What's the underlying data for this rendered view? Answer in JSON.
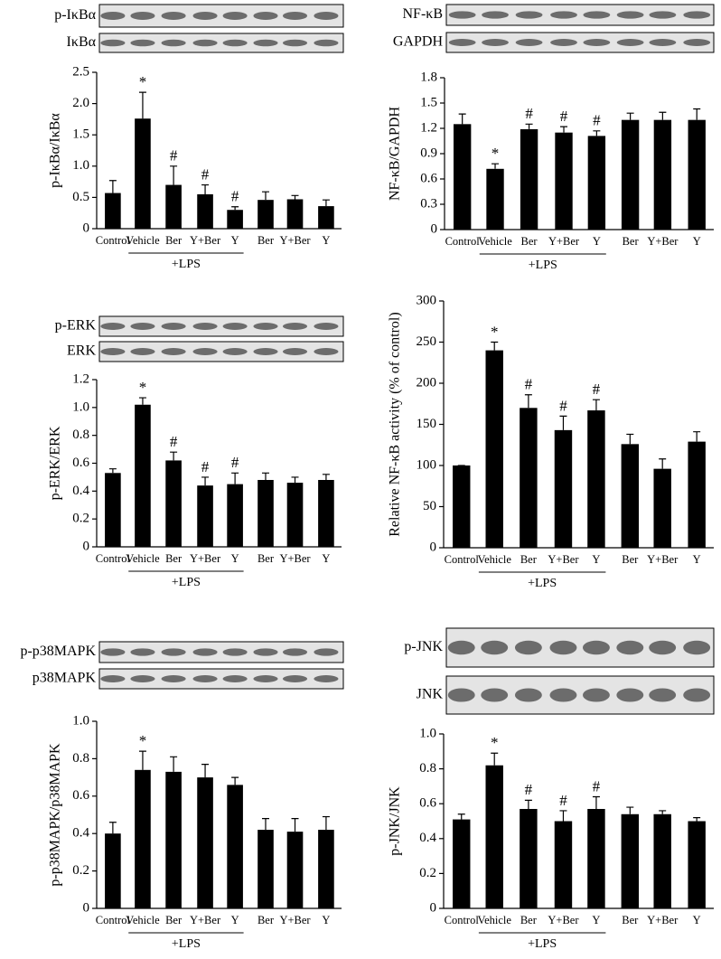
{
  "chart_data": [
    {
      "type": "bar",
      "ylabel": "p-IκBα/IκBα",
      "blots": [
        "p-IκBα",
        "IκBα"
      ],
      "categories": [
        "Control",
        "Vehicle",
        "Ber",
        "Y+Ber",
        "Y",
        "Ber",
        "Y+Ber",
        "Y"
      ],
      "values": [
        0.57,
        1.76,
        0.7,
        0.55,
        0.3,
        0.46,
        0.47,
        0.36
      ],
      "errors": [
        0.2,
        0.42,
        0.3,
        0.15,
        0.05,
        0.13,
        0.06,
        0.1
      ],
      "markers": [
        null,
        "*",
        "#",
        "#",
        "#",
        null,
        null,
        null
      ],
      "group_label": "+LPS",
      "color": "#000000",
      "ylim": [
        0,
        2.5
      ],
      "yticks": [
        0,
        0.5,
        {
          "value": 1,
          "label": "1.0"
        },
        1.5,
        {
          "value": 2,
          "label": "2.0"
        },
        2.5
      ]
    },
    {
      "type": "bar",
      "ylabel": "NF-κB/GAPDH",
      "blots": [
        "NF-κB",
        "GAPDH"
      ],
      "categories": [
        "Control",
        "Vehicle",
        "Ber",
        "Y+Ber",
        "Y",
        "Ber",
        "Y+Ber",
        "Y"
      ],
      "values": [
        1.25,
        0.72,
        1.19,
        1.15,
        1.11,
        1.3,
        1.3,
        1.3
      ],
      "errors": [
        0.12,
        0.06,
        0.06,
        0.07,
        0.06,
        0.08,
        0.09,
        0.13
      ],
      "markers": [
        null,
        "*",
        "#",
        "#",
        "#",
        null,
        null,
        null
      ],
      "group_label": "+LPS",
      "color": "#000000",
      "ylim": [
        0,
        1.8
      ],
      "yticks": [
        0,
        0.3,
        0.6,
        0.9,
        1.2,
        1.5,
        1.8
      ]
    },
    {
      "type": "bar",
      "ylabel": "p-ERK/ERK",
      "blots": [
        "p-ERK",
        "ERK"
      ],
      "categories": [
        "Control",
        "Vehicle",
        "Ber",
        "Y+Ber",
        "Y",
        "Ber",
        "Y+Ber",
        "Y"
      ],
      "values": [
        0.53,
        1.02,
        0.62,
        0.44,
        0.45,
        0.48,
        0.46,
        0.48
      ],
      "errors": [
        0.03,
        0.05,
        0.06,
        0.06,
        0.08,
        0.05,
        0.04,
        0.04
      ],
      "markers": [
        null,
        "*",
        "#",
        "#",
        "#",
        null,
        null,
        null
      ],
      "group_label": "+LPS",
      "color": "#000000",
      "ylim": [
        0,
        1.2
      ],
      "yticks": [
        0,
        0.2,
        0.4,
        0.6,
        0.8,
        {
          "value": 1,
          "label": "1.0"
        },
        1.2
      ]
    },
    {
      "type": "bar",
      "ylabel": "Relative NF-κB activity (% of control)",
      "categories": [
        "Control",
        "Vehicle",
        "Ber",
        "Y+Ber",
        "Y",
        "Ber",
        "Y+Ber",
        "Y"
      ],
      "values": [
        100,
        240,
        170,
        143,
        167,
        126,
        96,
        129
      ],
      "errors": [
        0,
        10,
        16,
        17,
        13,
        12,
        12,
        12
      ],
      "markers": [
        null,
        "*",
        "#",
        "#",
        "#",
        null,
        null,
        null
      ],
      "group_label": "+LPS",
      "color": "#000000",
      "ylim": [
        0,
        300
      ],
      "yticks": [
        0,
        50,
        100,
        150,
        200,
        250,
        300
      ]
    },
    {
      "type": "bar",
      "ylabel": "p-p38MAPK/p38MAPK",
      "blots": [
        "p-p38MAPK",
        "p38MAPK"
      ],
      "categories": [
        "Control",
        "Vehicle",
        "Ber",
        "Y+Ber",
        "Y",
        "Ber",
        "Y+Ber",
        "Y"
      ],
      "values": [
        0.4,
        0.74,
        0.73,
        0.7,
        0.66,
        0.42,
        0.41,
        0.42
      ],
      "errors": [
        0.06,
        0.1,
        0.08,
        0.07,
        0.04,
        0.06,
        0.07,
        0.07
      ],
      "markers": [
        null,
        "*",
        null,
        null,
        null,
        null,
        null,
        null
      ],
      "group_label": "+LPS",
      "color": "#000000",
      "ylim": [
        0,
        1
      ],
      "yticks": [
        0,
        0.2,
        0.4,
        0.6,
        0.8,
        {
          "value": 1,
          "label": "1.0"
        }
      ]
    },
    {
      "type": "bar",
      "ylabel": "p-JNK/JNK",
      "blots": [
        "p-JNK",
        "JNK"
      ],
      "categories": [
        "Control",
        "Vehicle",
        "Ber",
        "Y+Ber",
        "Y",
        "Ber",
        "Y+Ber",
        "Y"
      ],
      "values": [
        0.51,
        0.82,
        0.57,
        0.5,
        0.57,
        0.54,
        0.54,
        0.5
      ],
      "errors": [
        0.03,
        0.07,
        0.05,
        0.06,
        0.07,
        0.04,
        0.02,
        0.02
      ],
      "markers": [
        null,
        "*",
        "#",
        "#",
        "#",
        null,
        null,
        null
      ],
      "group_label": "+LPS",
      "color": "#000000",
      "ylim": [
        0,
        1
      ],
      "yticks": [
        0,
        0.2,
        0.4,
        0.6,
        0.8,
        {
          "value": 1,
          "label": "1.0"
        }
      ]
    }
  ]
}
